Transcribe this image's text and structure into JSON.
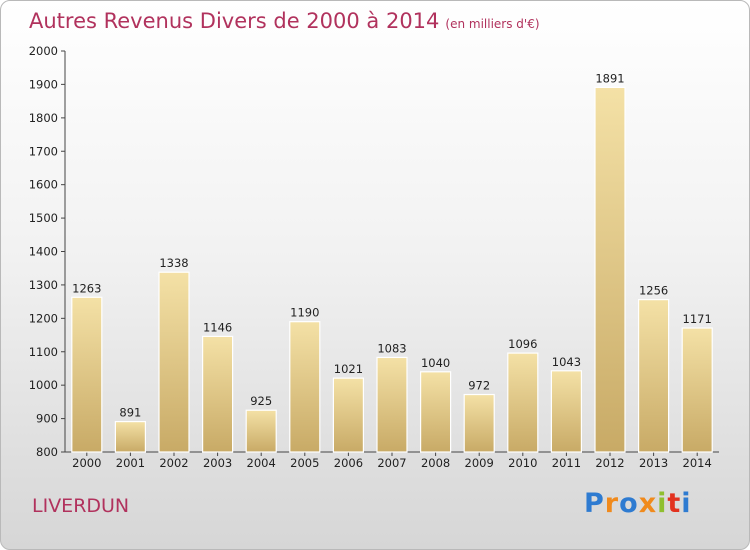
{
  "title": "Autres Revenus Divers de 2000 à 2014",
  "subtitle": "(en milliers d'€)",
  "city": "LIVERDUN",
  "logo": {
    "letters": [
      "P",
      "r",
      "o",
      "x",
      "i",
      "t",
      "i"
    ],
    "colors": [
      "#2e7bd1",
      "#f08a1c",
      "#2e7bd1",
      "#f08a1c",
      "#8fbf2f",
      "#e2321f",
      "#2e7bd1"
    ]
  },
  "colors": {
    "title": "#b1325d",
    "bar_light": "#f3dd9d",
    "bar_dark": "#c9ac68"
  },
  "chart_data": {
    "type": "bar",
    "categories": [
      "2000",
      "2001",
      "2002",
      "2003",
      "2004",
      "2005",
      "2006",
      "2007",
      "2008",
      "2009",
      "2010",
      "2011",
      "2012",
      "2013",
      "2014"
    ],
    "values": [
      1263,
      891,
      1338,
      1146,
      925,
      1190,
      1021,
      1083,
      1040,
      972,
      1096,
      1043,
      1891,
      1256,
      1171
    ],
    "ylim": [
      800,
      2000
    ],
    "yticks": [
      800,
      900,
      1000,
      1100,
      1200,
      1300,
      1400,
      1500,
      1600,
      1700,
      1800,
      1900,
      2000
    ],
    "xlabel": "",
    "ylabel": "",
    "grid": false,
    "legend": "none"
  }
}
